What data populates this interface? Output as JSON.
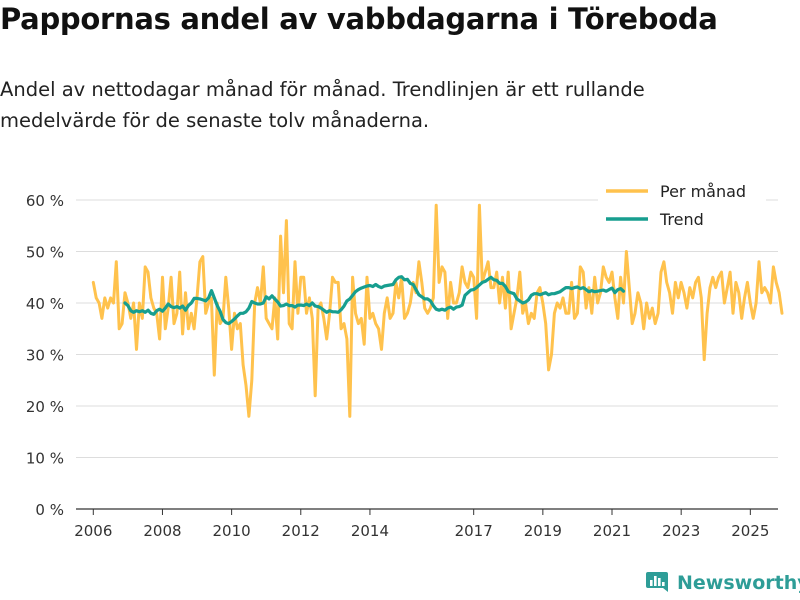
{
  "title": "Pappornas andel av vabbdagarna i Töreboda",
  "subtitle": "Andel av nettodagar månad för månad. Trendlinjen är ett rullande medelvärde för de senaste tolv månaderna.",
  "brand": {
    "name": "Newsworthy"
  },
  "colors": {
    "monthly": "#ffc24d",
    "trend": "#179e8f",
    "grid": "#dddddd",
    "axis": "#333333",
    "brand": "#2e9d97"
  },
  "chart_data": {
    "type": "line",
    "title": "Pappornas andel av vabbdagarna i Töreboda",
    "xlabel": "",
    "ylabel": "",
    "ylim": [
      0,
      60
    ],
    "yticks": [
      0,
      10,
      20,
      30,
      40,
      50,
      60
    ],
    "ytick_labels": [
      "0 %",
      "10 %",
      "20 %",
      "30 %",
      "40 %",
      "50 %",
      "60 %"
    ],
    "xlim": [
      2005.5,
      2025.8
    ],
    "xticks": [
      2006,
      2008,
      2010,
      2012,
      2014,
      2017,
      2019,
      2021,
      2023,
      2025
    ],
    "xtick_labels": [
      "2006",
      "2008",
      "2010",
      "2012",
      "2014",
      "2017",
      "2019",
      "2021",
      "2023",
      "2025"
    ],
    "legend": {
      "placement": "top-right",
      "entries": [
        "Per månad",
        "Trend"
      ]
    },
    "x_start": 2006.0,
    "x_step": 0.08333,
    "series": [
      {
        "name": "Per månad",
        "values": [
          44,
          41,
          40,
          37,
          41,
          39,
          41,
          40,
          48,
          35,
          36,
          42,
          40,
          37,
          40,
          31,
          40,
          37,
          47,
          46,
          41,
          39,
          38,
          33,
          45,
          35,
          39,
          45,
          36,
          38,
          46,
          34,
          42,
          35,
          38,
          35,
          41,
          48,
          49,
          38,
          40,
          41,
          26,
          40,
          36,
          37,
          45,
          39,
          31,
          38,
          35,
          36,
          28,
          24,
          18,
          25,
          40,
          43,
          40,
          47,
          37,
          36,
          35,
          41,
          33,
          53,
          42,
          56,
          36,
          35,
          48,
          38,
          45,
          45,
          38,
          41,
          37,
          22,
          39,
          40,
          37,
          33,
          38,
          45,
          44,
          44,
          35,
          36,
          33,
          18,
          45,
          38,
          36,
          37,
          32,
          45,
          37,
          38,
          36,
          35,
          31,
          38,
          41,
          37,
          38,
          44,
          41,
          45,
          37,
          38,
          40,
          44,
          42,
          48,
          44,
          39,
          38,
          39,
          41,
          59,
          44,
          47,
          46,
          37,
          44,
          40,
          40,
          42,
          47,
          44,
          43,
          46,
          45,
          37,
          59,
          44,
          46,
          48,
          43,
          43,
          46,
          40,
          45,
          39,
          46,
          35,
          38,
          41,
          46,
          38,
          40,
          36,
          38,
          37,
          42,
          43,
          40,
          36,
          27,
          30,
          38,
          40,
          39,
          41,
          38,
          38,
          44,
          37,
          38,
          47,
          46,
          39,
          43,
          38,
          45,
          40,
          42,
          47,
          45,
          44,
          46,
          41,
          37,
          45,
          40,
          50,
          43,
          36,
          38,
          42,
          40,
          35,
          40,
          37,
          39,
          36,
          38,
          46,
          48,
          44,
          42,
          38,
          44,
          41,
          44,
          42,
          39,
          43,
          41,
          44,
          45,
          41,
          29,
          38,
          43,
          45,
          43,
          45,
          46,
          40,
          43,
          46,
          38,
          44,
          42,
          37,
          41,
          44,
          40,
          37,
          40,
          48,
          42,
          43,
          42,
          40,
          47,
          44,
          42,
          38
        ],
        "color": "#ffc24d"
      },
      {
        "name": "Trend",
        "x_start": 2006.917,
        "values": [
          40,
          39.5,
          38.5,
          38.2,
          38.5,
          38.3,
          38.5,
          38.2,
          38.6,
          38,
          37.8,
          38.5,
          38.8,
          38.4,
          39,
          39.8,
          39.3,
          39.1,
          39.3,
          39,
          39.4,
          38.6,
          39.5,
          40,
          40.9,
          40.9,
          40.8,
          40.6,
          40.4,
          41,
          42.4,
          41,
          39.5,
          38.4,
          36.8,
          36.2,
          36,
          36.4,
          36.9,
          37.5,
          38,
          38,
          38.3,
          39,
          40.3,
          40,
          39.8,
          39.8,
          40,
          41.2,
          40.8,
          41.4,
          40.8,
          40.2,
          39.4,
          39.5,
          39.8,
          39.5,
          39.5,
          39.2,
          39.6,
          39.6,
          39.5,
          39.8,
          39.5,
          40,
          39.4,
          39.3,
          39,
          38.6,
          38.2,
          38.5,
          38.3,
          38.3,
          38.2,
          38.7,
          39.4,
          40.4,
          40.8,
          41.5,
          42.2,
          42.6,
          42.9,
          43.1,
          43.3,
          43.4,
          43.2,
          43.6,
          43.2,
          43,
          43.3,
          43.4,
          43.5,
          43.6,
          44.5,
          45,
          45.1,
          44.5,
          44.6,
          43.8,
          43.6,
          42.6,
          41.6,
          41.2,
          40.8,
          40.8,
          40.4,
          39.5,
          38.8,
          38.6,
          38.8,
          38.6,
          39,
          39.2,
          38.8,
          39.2,
          39.3,
          39.6,
          41.5,
          42,
          42.5,
          42.6,
          43,
          43.5,
          44,
          44.2,
          44.6,
          45,
          44.5,
          44.4,
          43.8,
          43.8,
          43.2,
          42.2,
          42,
          41.8,
          40.8,
          40.4,
          40,
          40.2,
          40.6,
          41.5,
          41.8,
          41.8,
          41.6,
          41.8,
          42,
          41.6,
          41.8,
          41.8,
          42,
          42.2,
          42.6,
          43,
          43,
          42.8,
          43,
          43.1,
          42.8,
          43,
          42.6,
          42.2,
          42.4,
          42.2,
          42.3,
          42.4,
          42.5,
          42.3,
          42.6,
          42.9,
          42,
          42.6,
          42.8,
          42.3
        ]
      }
    ]
  }
}
